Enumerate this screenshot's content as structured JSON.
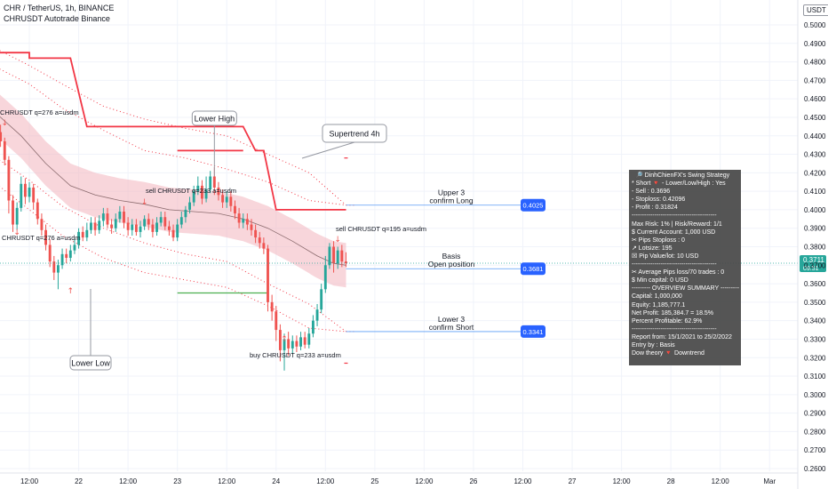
{
  "header": {
    "symbol": "CHR / TetherUS, 1h, BINANCE",
    "indicator": "CHRUSDT Autotrade Binance"
  },
  "currency_badge": "USDT",
  "colors": {
    "up": "#26a69a",
    "down": "#ef5350",
    "band_fill": "#f2b5bd",
    "band_mid": "#8b6b6e",
    "supertrend": "#f23645",
    "dotted": "#f23645",
    "label_blue": "#2962ff",
    "green_line": "#4caf50",
    "panel_bg": "#484848"
  },
  "chart_data": {
    "type": "candlestick",
    "title": "CHR / TetherUS, 1h, BINANCE",
    "y_axis": {
      "min": 0.26,
      "max": 0.5,
      "step": 0.01,
      "scale": "linear",
      "tick_labels": [
        "0.5000",
        "0.4900",
        "0.4800",
        "0.4700",
        "0.4600",
        "0.4500",
        "0.4400",
        "0.4300",
        "0.4200",
        "0.4100",
        "0.4000",
        "0.3900",
        "0.3800",
        "0.3700",
        "0.3600",
        "0.3500",
        "0.3400",
        "0.3300",
        "0.3200",
        "0.3100",
        "0.3000",
        "0.2900",
        "0.2800",
        "0.2700",
        "0.2600"
      ]
    },
    "x_axis": {
      "tick_labels": [
        "12:00",
        "22",
        "12:00",
        "23",
        "12:00",
        "24",
        "12:00",
        "25",
        "12:00",
        "26",
        "12:00",
        "27",
        "12:00",
        "28",
        "12:00",
        "Mar"
      ],
      "x_positions_hours": [
        12,
        24,
        36,
        48,
        60,
        72,
        84,
        96,
        108,
        120,
        132,
        144,
        156,
        168,
        180,
        192
      ],
      "range_hours": [
        4,
        198
      ]
    },
    "last_price": {
      "value": "0.3711",
      "countdown": "09:51"
    },
    "candles": [
      [
        4,
        0.44,
        0.442,
        0.438,
        0.443
      ],
      [
        5,
        0.442,
        0.437,
        0.434,
        0.446
      ],
      [
        6,
        0.437,
        0.427,
        0.424,
        0.439
      ],
      [
        7,
        0.427,
        0.405,
        0.398,
        0.429
      ],
      [
        8,
        0.405,
        0.392,
        0.388,
        0.408
      ],
      [
        9,
        0.392,
        0.401,
        0.389,
        0.404
      ],
      [
        10,
        0.401,
        0.414,
        0.399,
        0.418
      ],
      [
        11,
        0.414,
        0.407,
        0.403,
        0.417
      ],
      [
        12,
        0.407,
        0.412,
        0.404,
        0.415
      ],
      [
        13,
        0.412,
        0.404,
        0.4,
        0.414
      ],
      [
        14,
        0.404,
        0.395,
        0.392,
        0.406
      ],
      [
        15,
        0.395,
        0.389,
        0.386,
        0.398
      ],
      [
        16,
        0.389,
        0.381,
        0.378,
        0.392
      ],
      [
        17,
        0.381,
        0.372,
        0.369,
        0.384
      ],
      [
        18,
        0.372,
        0.366,
        0.362,
        0.375
      ],
      [
        19,
        0.366,
        0.37,
        0.357,
        0.373
      ],
      [
        20,
        0.37,
        0.376,
        0.368,
        0.379
      ],
      [
        21,
        0.376,
        0.374,
        0.371,
        0.379
      ],
      [
        22,
        0.374,
        0.378,
        0.372,
        0.381
      ],
      [
        23,
        0.378,
        0.381,
        0.376,
        0.384
      ],
      [
        24,
        0.381,
        0.388,
        0.379,
        0.39
      ],
      [
        25,
        0.388,
        0.385,
        0.383,
        0.391
      ],
      [
        26,
        0.385,
        0.389,
        0.383,
        0.393
      ],
      [
        27,
        0.389,
        0.393,
        0.387,
        0.396
      ],
      [
        28,
        0.393,
        0.389,
        0.386,
        0.396
      ],
      [
        29,
        0.389,
        0.394,
        0.387,
        0.397
      ],
      [
        30,
        0.394,
        0.398,
        0.391,
        0.401
      ],
      [
        31,
        0.398,
        0.392,
        0.39,
        0.401
      ],
      [
        32,
        0.392,
        0.39,
        0.387,
        0.395
      ],
      [
        33,
        0.39,
        0.395,
        0.388,
        0.398
      ],
      [
        34,
        0.395,
        0.399,
        0.393,
        0.402
      ],
      [
        35,
        0.399,
        0.393,
        0.39,
        0.402
      ],
      [
        36,
        0.393,
        0.389,
        0.386,
        0.396
      ],
      [
        37,
        0.389,
        0.392,
        0.386,
        0.395
      ],
      [
        38,
        0.392,
        0.388,
        0.386,
        0.395
      ],
      [
        39,
        0.388,
        0.391,
        0.385,
        0.394
      ],
      [
        40,
        0.391,
        0.395,
        0.389,
        0.397
      ],
      [
        41,
        0.395,
        0.392,
        0.389,
        0.398
      ],
      [
        42,
        0.392,
        0.388,
        0.385,
        0.395
      ],
      [
        43,
        0.388,
        0.393,
        0.386,
        0.396
      ],
      [
        44,
        0.393,
        0.396,
        0.391,
        0.399
      ],
      [
        45,
        0.396,
        0.391,
        0.389,
        0.399
      ],
      [
        46,
        0.391,
        0.389,
        0.386,
        0.394
      ],
      [
        47,
        0.389,
        0.385,
        0.383,
        0.392
      ],
      [
        48,
        0.385,
        0.392,
        0.383,
        0.395
      ],
      [
        49,
        0.392,
        0.396,
        0.39,
        0.399
      ],
      [
        50,
        0.396,
        0.4,
        0.393,
        0.402
      ],
      [
        51,
        0.4,
        0.404,
        0.398,
        0.407
      ],
      [
        52,
        0.404,
        0.41,
        0.402,
        0.413
      ],
      [
        53,
        0.41,
        0.413,
        0.408,
        0.418
      ],
      [
        54,
        0.413,
        0.406,
        0.403,
        0.416
      ],
      [
        55,
        0.406,
        0.411,
        0.404,
        0.418
      ],
      [
        56,
        0.411,
        0.418,
        0.409,
        0.421
      ],
      [
        57,
        0.418,
        0.412,
        0.408,
        0.423
      ],
      [
        58,
        0.412,
        0.408,
        0.405,
        0.415
      ],
      [
        59,
        0.408,
        0.404,
        0.401,
        0.411
      ],
      [
        60,
        0.404,
        0.407,
        0.401,
        0.41
      ],
      [
        61,
        0.407,
        0.402,
        0.399,
        0.41
      ],
      [
        62,
        0.402,
        0.398,
        0.395,
        0.405
      ],
      [
        63,
        0.398,
        0.393,
        0.39,
        0.401
      ],
      [
        64,
        0.393,
        0.395,
        0.39,
        0.398
      ],
      [
        65,
        0.395,
        0.392,
        0.389,
        0.398
      ],
      [
        66,
        0.392,
        0.389,
        0.386,
        0.395
      ],
      [
        67,
        0.389,
        0.385,
        0.382,
        0.392
      ],
      [
        68,
        0.385,
        0.382,
        0.379,
        0.388
      ],
      [
        69,
        0.382,
        0.379,
        0.376,
        0.385
      ],
      [
        70,
        0.379,
        0.35,
        0.345,
        0.381
      ],
      [
        71,
        0.35,
        0.345,
        0.34,
        0.354
      ],
      [
        72,
        0.345,
        0.335,
        0.329,
        0.348
      ],
      [
        73,
        0.335,
        0.324,
        0.318,
        0.338
      ],
      [
        74,
        0.324,
        0.33,
        0.313,
        0.333
      ],
      [
        75,
        0.33,
        0.325,
        0.321,
        0.334
      ],
      [
        76,
        0.325,
        0.329,
        0.322,
        0.332
      ],
      [
        77,
        0.329,
        0.326,
        0.323,
        0.332
      ],
      [
        78,
        0.326,
        0.331,
        0.324,
        0.334
      ],
      [
        79,
        0.331,
        0.327,
        0.325,
        0.334
      ],
      [
        80,
        0.327,
        0.333,
        0.325,
        0.336
      ],
      [
        81,
        0.333,
        0.34,
        0.331,
        0.343
      ],
      [
        82,
        0.34,
        0.346,
        0.337,
        0.349
      ],
      [
        83,
        0.346,
        0.357,
        0.344,
        0.36
      ],
      [
        84,
        0.357,
        0.37,
        0.355,
        0.375
      ],
      [
        85,
        0.37,
        0.38,
        0.368,
        0.382
      ],
      [
        86,
        0.38,
        0.371,
        0.366,
        0.383
      ],
      [
        87,
        0.371,
        0.378,
        0.368,
        0.38
      ],
      [
        88,
        0.378,
        0.372,
        0.369,
        0.381
      ],
      [
        89,
        0.372,
        0.3711,
        0.369,
        0.377
      ]
    ],
    "band_mid": [
      [
        4,
        0.452
      ],
      [
        10,
        0.44
      ],
      [
        16,
        0.425
      ],
      [
        22,
        0.413
      ],
      [
        28,
        0.408
      ],
      [
        34,
        0.405
      ],
      [
        40,
        0.403
      ],
      [
        46,
        0.4
      ],
      [
        52,
        0.399
      ],
      [
        58,
        0.398
      ],
      [
        64,
        0.395
      ],
      [
        70,
        0.39
      ],
      [
        76,
        0.383
      ],
      [
        82,
        0.375
      ],
      [
        86,
        0.371
      ],
      [
        89,
        0.37
      ]
    ],
    "band_half_width": 0.012,
    "upper_bands": [
      {
        "offset": 0.025,
        "points": [
          [
            4,
            0.477
          ],
          [
            12,
            0.468
          ],
          [
            20,
            0.455
          ],
          [
            30,
            0.443
          ],
          [
            40,
            0.432
          ],
          [
            50,
            0.428
          ],
          [
            60,
            0.422
          ],
          [
            70,
            0.415
          ],
          [
            80,
            0.405
          ],
          [
            89,
            0.4025
          ]
        ]
      },
      {
        "offset": 0.048,
        "points": [
          [
            4,
            0.487
          ],
          [
            12,
            0.478
          ],
          [
            20,
            0.468
          ],
          [
            30,
            0.456
          ],
          [
            40,
            0.449
          ],
          [
            50,
            0.444
          ],
          [
            60,
            0.44
          ],
          [
            70,
            0.43
          ],
          [
            80,
            0.42
          ],
          [
            89,
            0.4025
          ]
        ]
      }
    ],
    "lower_bands": [
      {
        "points": [
          [
            4,
            0.428
          ],
          [
            12,
            0.416
          ],
          [
            20,
            0.402
          ],
          [
            30,
            0.39
          ],
          [
            40,
            0.382
          ],
          [
            50,
            0.376
          ],
          [
            60,
            0.372
          ],
          [
            70,
            0.36
          ],
          [
            80,
            0.349
          ],
          [
            89,
            0.3341
          ]
        ]
      },
      {
        "points": [
          [
            4,
            0.414
          ],
          [
            12,
            0.4
          ],
          [
            20,
            0.386
          ],
          [
            30,
            0.374
          ],
          [
            40,
            0.366
          ],
          [
            50,
            0.362
          ],
          [
            60,
            0.358
          ],
          [
            70,
            0.348
          ],
          [
            80,
            0.336
          ],
          [
            89,
            0.3341
          ]
        ]
      }
    ],
    "supertrend": [
      [
        4,
        0.485
      ],
      [
        12,
        0.485
      ],
      [
        12,
        0.482
      ],
      [
        22,
        0.482
      ],
      [
        26,
        0.445
      ],
      [
        64,
        0.445
      ],
      [
        67,
        0.432
      ],
      [
        69,
        0.432
      ],
      [
        72,
        0.4
      ],
      [
        89,
        0.4
      ]
    ],
    "annotations": [
      {
        "type": "callout",
        "text": "Lower High"
      },
      {
        "type": "callout",
        "text": "Supertrend 4h"
      },
      {
        "type": "callout",
        "text": "Lower Low"
      },
      {
        "type": "text",
        "text": "CHRUSDT q=276 a=usdm"
      },
      {
        "type": "text",
        "text": "CHRUSDT q=276 a=usdm"
      },
      {
        "type": "text",
        "text": "sell CHRUSDT q=233 a=usdm"
      },
      {
        "type": "text",
        "text": "sell CHRUSDT q=195 a=usdm"
      },
      {
        "type": "text",
        "text": "buy CHRUSDT q=233 a=usdm"
      }
    ],
    "levels": [
      {
        "name": "upper3",
        "value": "0.4025",
        "label_line1": "Upper 3",
        "label_line2": "confirm Long"
      },
      {
        "name": "basis",
        "value": "0.3681",
        "label_line1": "Basis",
        "label_line2": "Open position"
      },
      {
        "name": "lower3",
        "value": "0.3341",
        "label_line1": "Lower 3",
        "label_line2": "confirm Short"
      }
    ]
  },
  "info_panel": {
    "lines": [
      "🔎 DinhChienFX's Swing Strategy",
      "* Short  🔻 - Lower/Low/High : Yes",
      "- Sell    : 0.3696",
      "- Stoploss: 0.42096",
      "- Profit   : 0.31824",
      "-----------------------------------------",
      "Max Risk: 1% | Risk/Reward: 1/1",
      "$ Current Account: 1,000 USD",
      "✂ Pips Stoploss : 0",
      "↗ Lotsize: 195",
      "☒ Pip Value/lot: 10 USD",
      "-----------------------------------------",
      "✂ Average Pips loss/70 trades : 0",
      "$ Min capital: 0 USD",
      "--------- OVERVIEW SUMMARY ---------",
      "Capital: 1,000,000",
      "Equity: 1,185,777.1",
      "Net Profit: 185,384.7 = 18.5%",
      "Percent Profitable: 62.9%",
      "-----------------------------------------",
      "Report from: 15/1/2021 to 25/2/2022",
      "Entry by : Basis",
      "Dow theory  🔻 Downtrend"
    ]
  }
}
